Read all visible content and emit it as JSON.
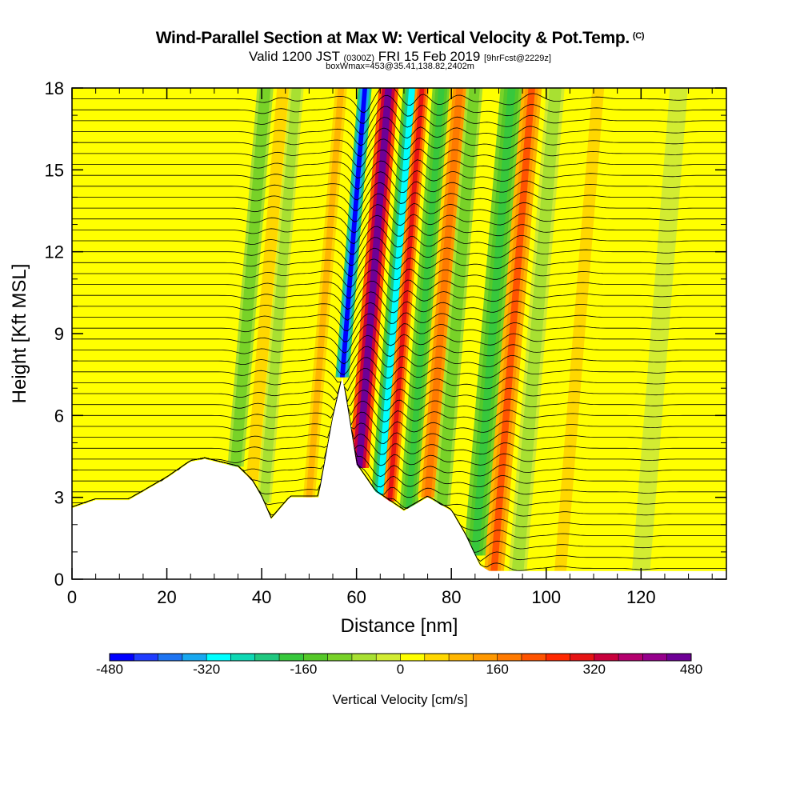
{
  "title": {
    "main": "Wind-Parallel Section at Max W: Vertical Velocity & Pot.Temp.",
    "copyright": "(C)",
    "valid_prefix": "Valid 1200 JST",
    "valid_utc": "(0300Z)",
    "valid_date": "FRI 15 Feb 2019",
    "forecast_info": "[9hrFcst@2229z]",
    "box_info": "boxWmax=453@35.41,138.82,2402m"
  },
  "chart_data": {
    "type": "heatmap",
    "xlabel": "Distance [nm]",
    "ylabel": "Height [Kft MSL]",
    "xlim": [
      0,
      138
    ],
    "ylim": [
      0,
      18
    ],
    "x_ticks": [
      "0",
      "20",
      "40",
      "60",
      "80",
      "100",
      "120"
    ],
    "x_tick_values": [
      0,
      20,
      40,
      60,
      80,
      100,
      120
    ],
    "y_ticks": [
      "0",
      "3",
      "6",
      "9",
      "12",
      "15",
      "18"
    ],
    "y_tick_values": [
      0,
      3,
      6,
      9,
      12,
      15,
      18
    ],
    "terrain_profile": [
      [
        0,
        2.6
      ],
      [
        5,
        2.9
      ],
      [
        12,
        2.9
      ],
      [
        16,
        3.3
      ],
      [
        20,
        3.7
      ],
      [
        25,
        4.3
      ],
      [
        28,
        4.4
      ],
      [
        35,
        4.1
      ],
      [
        38,
        3.6
      ],
      [
        40,
        3.0
      ],
      [
        42,
        2.2
      ],
      [
        46,
        3.0
      ],
      [
        52,
        3.0
      ],
      [
        55,
        5.9
      ],
      [
        57,
        7.4
      ],
      [
        58,
        6.4
      ],
      [
        60,
        4.2
      ],
      [
        64,
        3.2
      ],
      [
        70,
        2.5
      ],
      [
        75,
        3.0
      ],
      [
        80,
        2.5
      ],
      [
        83,
        1.6
      ],
      [
        86,
        0.5
      ],
      [
        88,
        0.3
      ],
      [
        138,
        0.3
      ]
    ],
    "vertical_velocity_bands": [
      {
        "x": 34.5,
        "width": 1.8,
        "w": -120
      },
      {
        "x": 38,
        "width": 2.0,
        "w": 60
      },
      {
        "x": 40.5,
        "width": 1.6,
        "w": -80
      },
      {
        "x": 50,
        "width": 2.0,
        "w": 80
      },
      {
        "x": 57,
        "width": 1.5,
        "w": -450
      },
      {
        "x": 60.5,
        "width": 2.2,
        "w": 453
      },
      {
        "x": 65,
        "width": 2.0,
        "w": -300
      },
      {
        "x": 67,
        "width": 1.5,
        "w": 300
      },
      {
        "x": 71,
        "width": 2.0,
        "w": -200
      },
      {
        "x": 75,
        "width": 2.2,
        "w": 160
      },
      {
        "x": 78,
        "width": 1.8,
        "w": -120
      },
      {
        "x": 85,
        "width": 2.5,
        "w": -200
      },
      {
        "x": 89,
        "width": 2.2,
        "w": 200
      },
      {
        "x": 94,
        "width": 2.0,
        "w": -80
      },
      {
        "x": 103,
        "width": 2.0,
        "w": 60
      },
      {
        "x": 120,
        "width": 2.0,
        "w": -40
      }
    ],
    "colorbar": {
      "title": "Vertical Velocity [cm/s]",
      "labels": [
        "-480",
        "-320",
        "-160",
        "0",
        "160",
        "320",
        "480"
      ],
      "label_values": [
        -480,
        -320,
        -160,
        0,
        160,
        320,
        480
      ],
      "min": -480,
      "max": 480,
      "colors": [
        "#0000ff",
        "#1f3cff",
        "#1e74f2",
        "#18a8f0",
        "#00ffff",
        "#0ed8b4",
        "#20c880",
        "#37c83c",
        "#55c828",
        "#78d228",
        "#a8e032",
        "#d2ec32",
        "#ffff00",
        "#ffd700",
        "#ffb600",
        "#ff9800",
        "#ff7a00",
        "#ff5300",
        "#ff2800",
        "#e61414",
        "#c8003c",
        "#b4006e",
        "#96008c",
        "#6e0096"
      ]
    }
  }
}
